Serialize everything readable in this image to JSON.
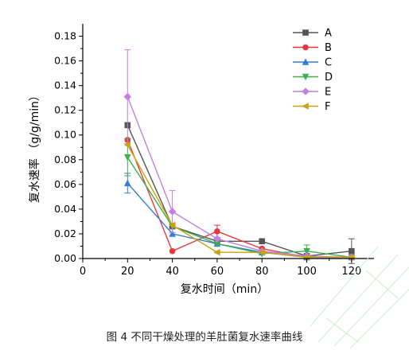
{
  "caption": "图 4  不同干燥处理的羊肚菌复水速率曲线",
  "chart_data": {
    "type": "line",
    "xlabel": "复水时间（min）",
    "ylabel": "复水速率 （g/g/min）",
    "xlim": [
      0,
      130
    ],
    "ylim": [
      0,
      0.19
    ],
    "xticks": [
      0,
      20,
      40,
      60,
      80,
      100,
      120
    ],
    "yticks": [
      0.0,
      0.02,
      0.04,
      0.06,
      0.08,
      0.1,
      0.12,
      0.14,
      0.16,
      0.18
    ],
    "x": [
      20,
      40,
      60,
      80,
      100,
      120
    ],
    "legend_position": "top-right",
    "series": [
      {
        "name": "A",
        "color": "#555555",
        "marker": "square",
        "values": [
          0.108,
          0.026,
          0.014,
          0.014,
          0.002,
          0.006
        ],
        "errors": [
          0.0,
          0.0,
          0.0,
          0.0,
          0.0,
          0.01
        ]
      },
      {
        "name": "B",
        "color": "#e8383d",
        "marker": "circle",
        "values": [
          0.096,
          0.006,
          0.022,
          0.008,
          0.001,
          0.001
        ],
        "errors": [
          0.0,
          0.0,
          0.005,
          0.0,
          0.0,
          0.0
        ]
      },
      {
        "name": "C",
        "color": "#2f7fd6",
        "marker": "triangle-up",
        "values": [
          0.061,
          0.02,
          0.012,
          0.005,
          0.001,
          0.001
        ],
        "errors": [
          0.008,
          0.0,
          0.0,
          0.0,
          0.0,
          0.0
        ]
      },
      {
        "name": "D",
        "color": "#3cb04a",
        "marker": "triangle-down",
        "values": [
          0.082,
          0.026,
          0.012,
          0.004,
          0.006,
          0.001
        ],
        "errors": [
          0.015,
          0.0,
          0.0,
          0.0,
          0.005,
          0.0
        ]
      },
      {
        "name": "E",
        "color": "#c47fe0",
        "marker": "diamond",
        "values": [
          0.131,
          0.038,
          0.016,
          0.006,
          0.002,
          0.001
        ],
        "errors": [
          0.038,
          0.017,
          0.0,
          0.0,
          0.0,
          0.0
        ]
      },
      {
        "name": "F",
        "color": "#c8a212",
        "marker": "triangle-left",
        "values": [
          0.092,
          0.027,
          0.005,
          0.005,
          0.001,
          0.001
        ],
        "errors": [
          0.0,
          0.0,
          0.0,
          0.0,
          0.0,
          0.0
        ]
      }
    ]
  }
}
